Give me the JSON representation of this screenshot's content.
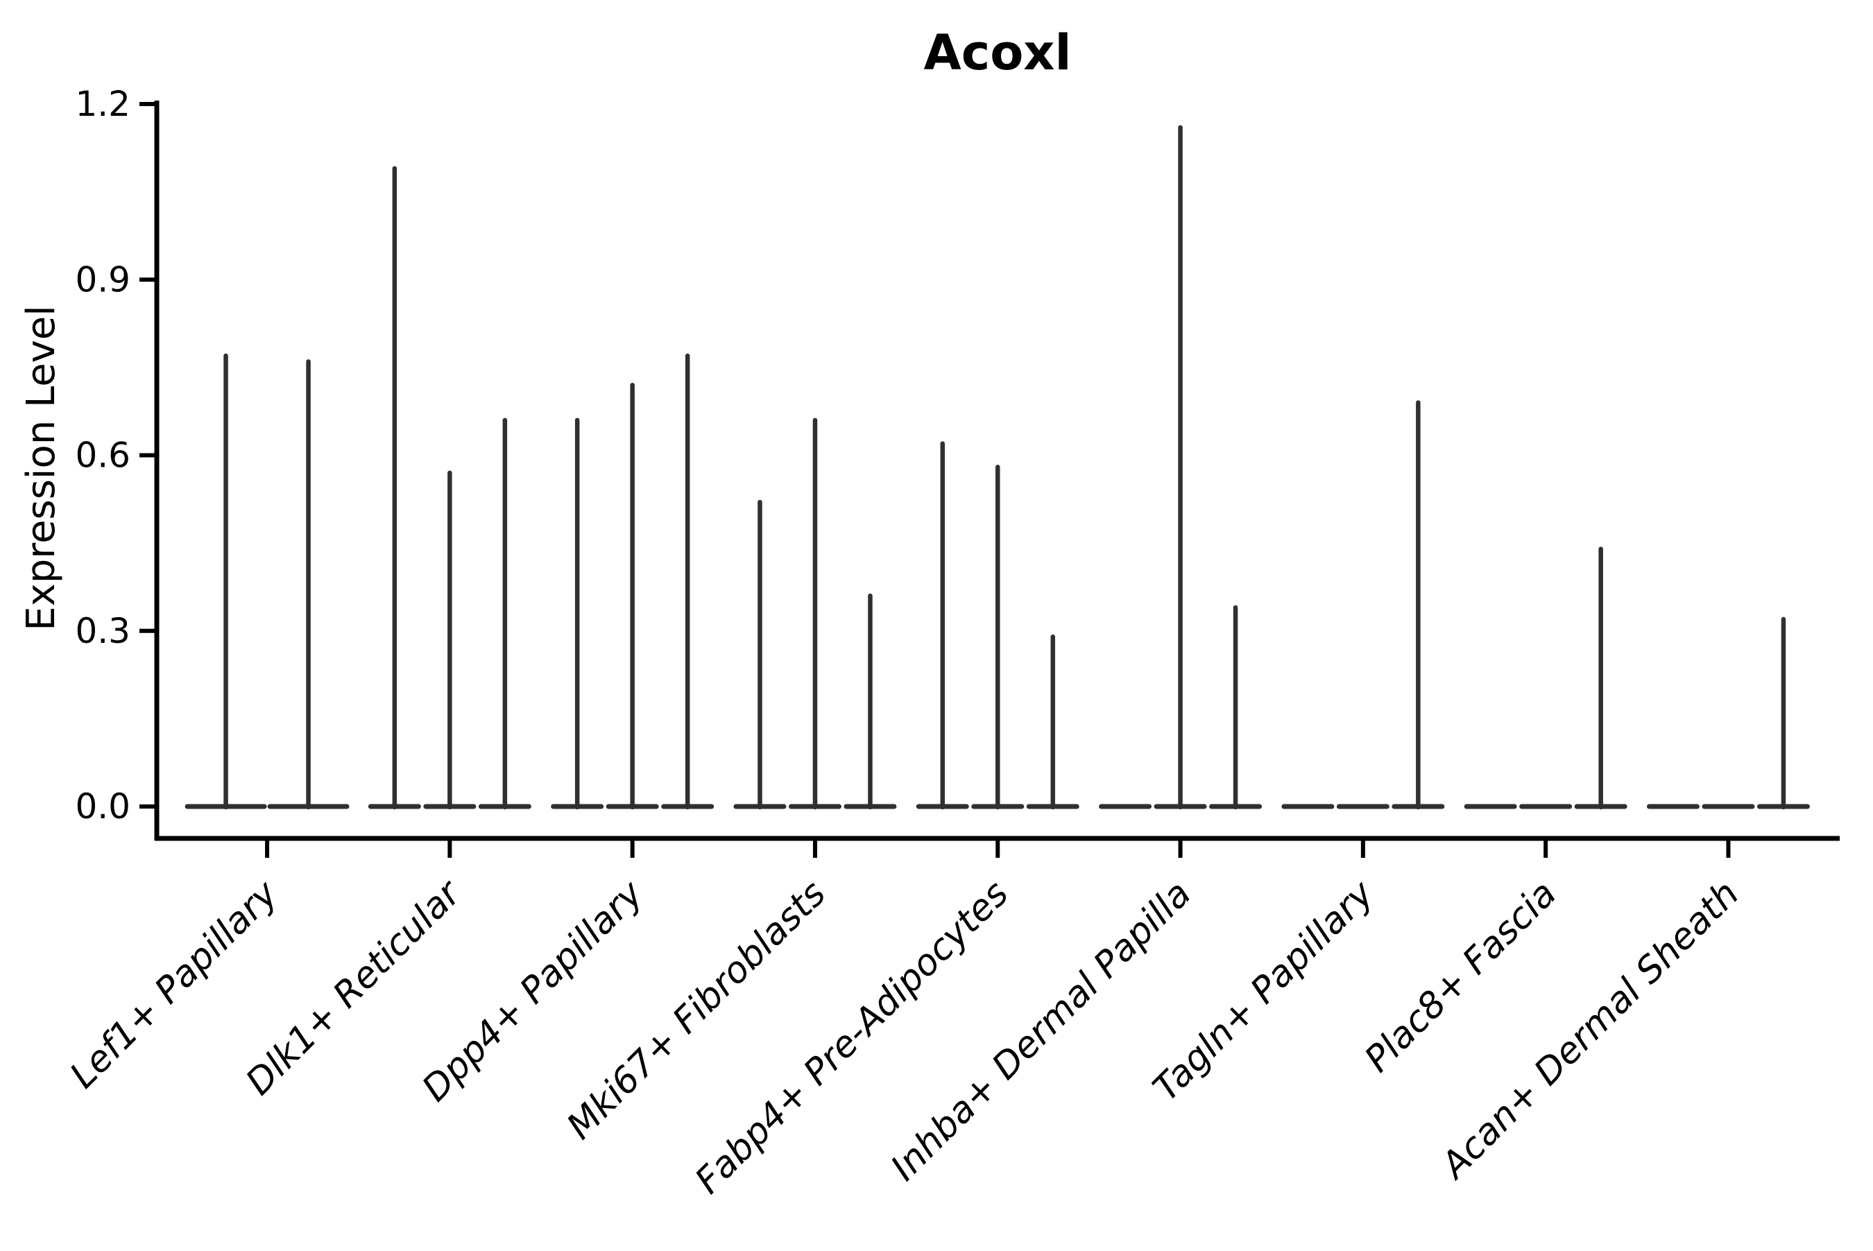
{
  "chart_data": {
    "type": "violin",
    "title": "Acoxl",
    "ylabel": "Expression Level",
    "xlabel": "",
    "ylim": [
      0,
      1.2
    ],
    "yticks": [
      {
        "label": "0.0",
        "value": 0.0
      },
      {
        "label": "0.3",
        "value": 0.3
      },
      {
        "label": "0.6",
        "value": 0.6
      },
      {
        "label": "0.9",
        "value": 0.9
      },
      {
        "label": "1.2",
        "value": 1.2
      }
    ],
    "categories": [
      "Lef1+ Papillary",
      "Dlk1+ Reticular",
      "Dpp4+ Papillary",
      "Mki67+ Fibroblasts",
      "Fabp4+ Pre-Adipocytes",
      "Inhba+ Dermal Papilla",
      "Tagln+ Papillary",
      "Plac8+ Fascia",
      "Acan+ Dermal Sheath"
    ],
    "groups": [
      {
        "label": "Lef1+ Papillary",
        "violins": [
          {
            "max": 0.77
          },
          {
            "max": 0.76
          }
        ]
      },
      {
        "label": "Dlk1+ Reticular",
        "violins": [
          {
            "max": 1.09
          },
          {
            "max": 0.57
          },
          {
            "max": 0.66
          }
        ]
      },
      {
        "label": "Dpp4+ Papillary",
        "violins": [
          {
            "max": 0.66
          },
          {
            "max": 0.72
          },
          {
            "max": 0.77
          }
        ]
      },
      {
        "label": "Mki67+ Fibroblasts",
        "violins": [
          {
            "max": 0.52
          },
          {
            "max": 0.66
          },
          {
            "max": 0.36
          }
        ]
      },
      {
        "label": "Fabp4+ Pre-Adipocytes",
        "violins": [
          {
            "max": 0.62
          },
          {
            "max": 0.58
          },
          {
            "max": 0.29
          }
        ]
      },
      {
        "label": "Inhba+ Dermal Papilla",
        "violins": [
          {
            "max": null
          },
          {
            "max": 1.16
          },
          {
            "max": 0.34
          }
        ]
      },
      {
        "label": "Tagln+ Papillary",
        "violins": [
          {
            "max": null
          },
          {
            "max": null
          },
          {
            "max": 0.69
          }
        ]
      },
      {
        "label": "Plac8+ Fascia",
        "violins": [
          {
            "max": null
          },
          {
            "max": null
          },
          {
            "max": 0.44
          }
        ]
      },
      {
        "label": "Acan+ Dermal Sheath",
        "violins": [
          {
            "max": null
          },
          {
            "max": null
          },
          {
            "max": 0.32
          }
        ]
      }
    ],
    "legend": null,
    "grid": false
  },
  "colors": {
    "background": "#ffffff",
    "violin": "#303030",
    "spike": "#303030",
    "axis": "#000000",
    "text": "#000000"
  }
}
